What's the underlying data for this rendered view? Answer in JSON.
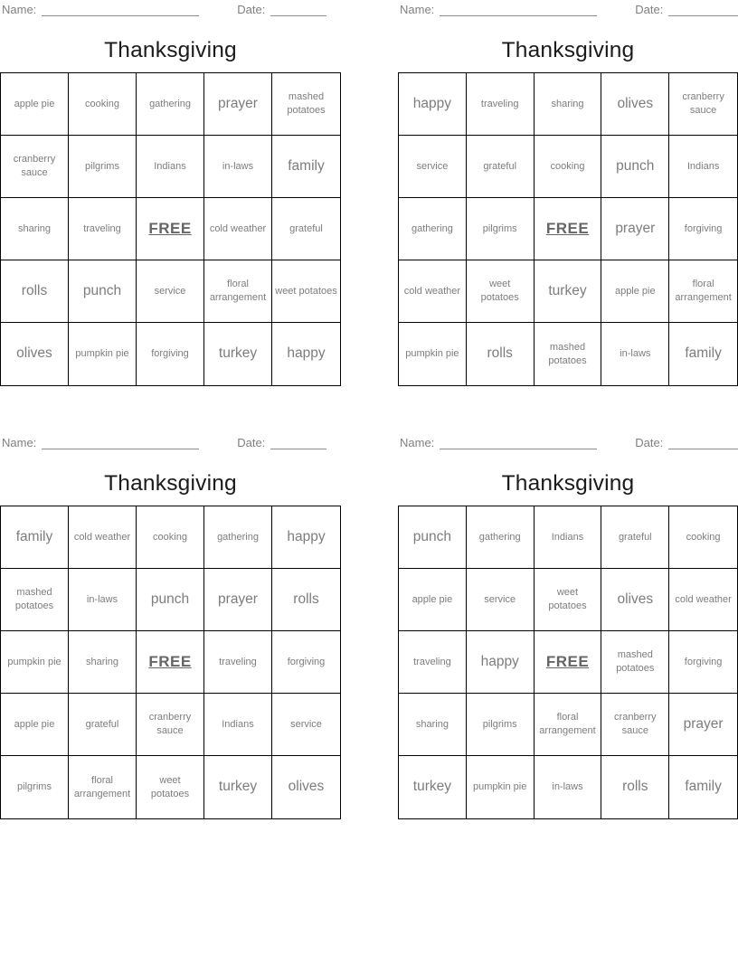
{
  "labels": {
    "name": "Name:",
    "date": "Date:"
  },
  "title": "Thanksgiving",
  "free": "FREE",
  "colors": {
    "cell_text": "#7d7d7d",
    "grid_border": "#000000",
    "title_text": "#1b1b1b",
    "header_text": "#808080",
    "free_text": "#666666"
  },
  "cards": [
    {
      "cells": [
        "apple pie",
        "cooking",
        "gathering",
        "prayer",
        "mashed potatoes",
        "cranberry sauce",
        "pilgrims",
        "Indians",
        "in-laws",
        "family",
        "sharing",
        "traveling",
        "FREE",
        "cold weather",
        "grateful",
        "rolls",
        "punch",
        "service",
        "floral arrangement",
        "weet potatoes",
        "olives",
        "pumpkin pie",
        "forgiving",
        "turkey",
        "happy"
      ]
    },
    {
      "cells": [
        "happy",
        "traveling",
        "sharing",
        "olives",
        "cranberry sauce",
        "service",
        "grateful",
        "cooking",
        "punch",
        "Indians",
        "gathering",
        "pilgrims",
        "FREE",
        "prayer",
        "forgiving",
        "cold weather",
        "weet potatoes",
        "turkey",
        "apple pie",
        "floral arrangement",
        "pumpkin pie",
        "rolls",
        "mashed potatoes",
        "in-laws",
        "family"
      ]
    },
    {
      "cells": [
        "family",
        "cold weather",
        "cooking",
        "gathering",
        "happy",
        "mashed potatoes",
        "in-laws",
        "punch",
        "prayer",
        "rolls",
        "pumpkin pie",
        "sharing",
        "FREE",
        "traveling",
        "forgiving",
        "apple pie",
        "grateful",
        "cranberry sauce",
        "Indians",
        "service",
        "pilgrims",
        "floral arrangement",
        "weet potatoes",
        "turkey",
        "olives"
      ]
    },
    {
      "cells": [
        "punch",
        "gathering",
        "Indians",
        "grateful",
        "cooking",
        "apple pie",
        "service",
        "weet potatoes",
        "olives",
        "cold weather",
        "traveling",
        "happy",
        "FREE",
        "mashed potatoes",
        "forgiving",
        "sharing",
        "pilgrims",
        "floral arrangement",
        "cranberry sauce",
        "prayer",
        "turkey",
        "pumpkin pie",
        "in-laws",
        "rolls",
        "family"
      ]
    }
  ]
}
